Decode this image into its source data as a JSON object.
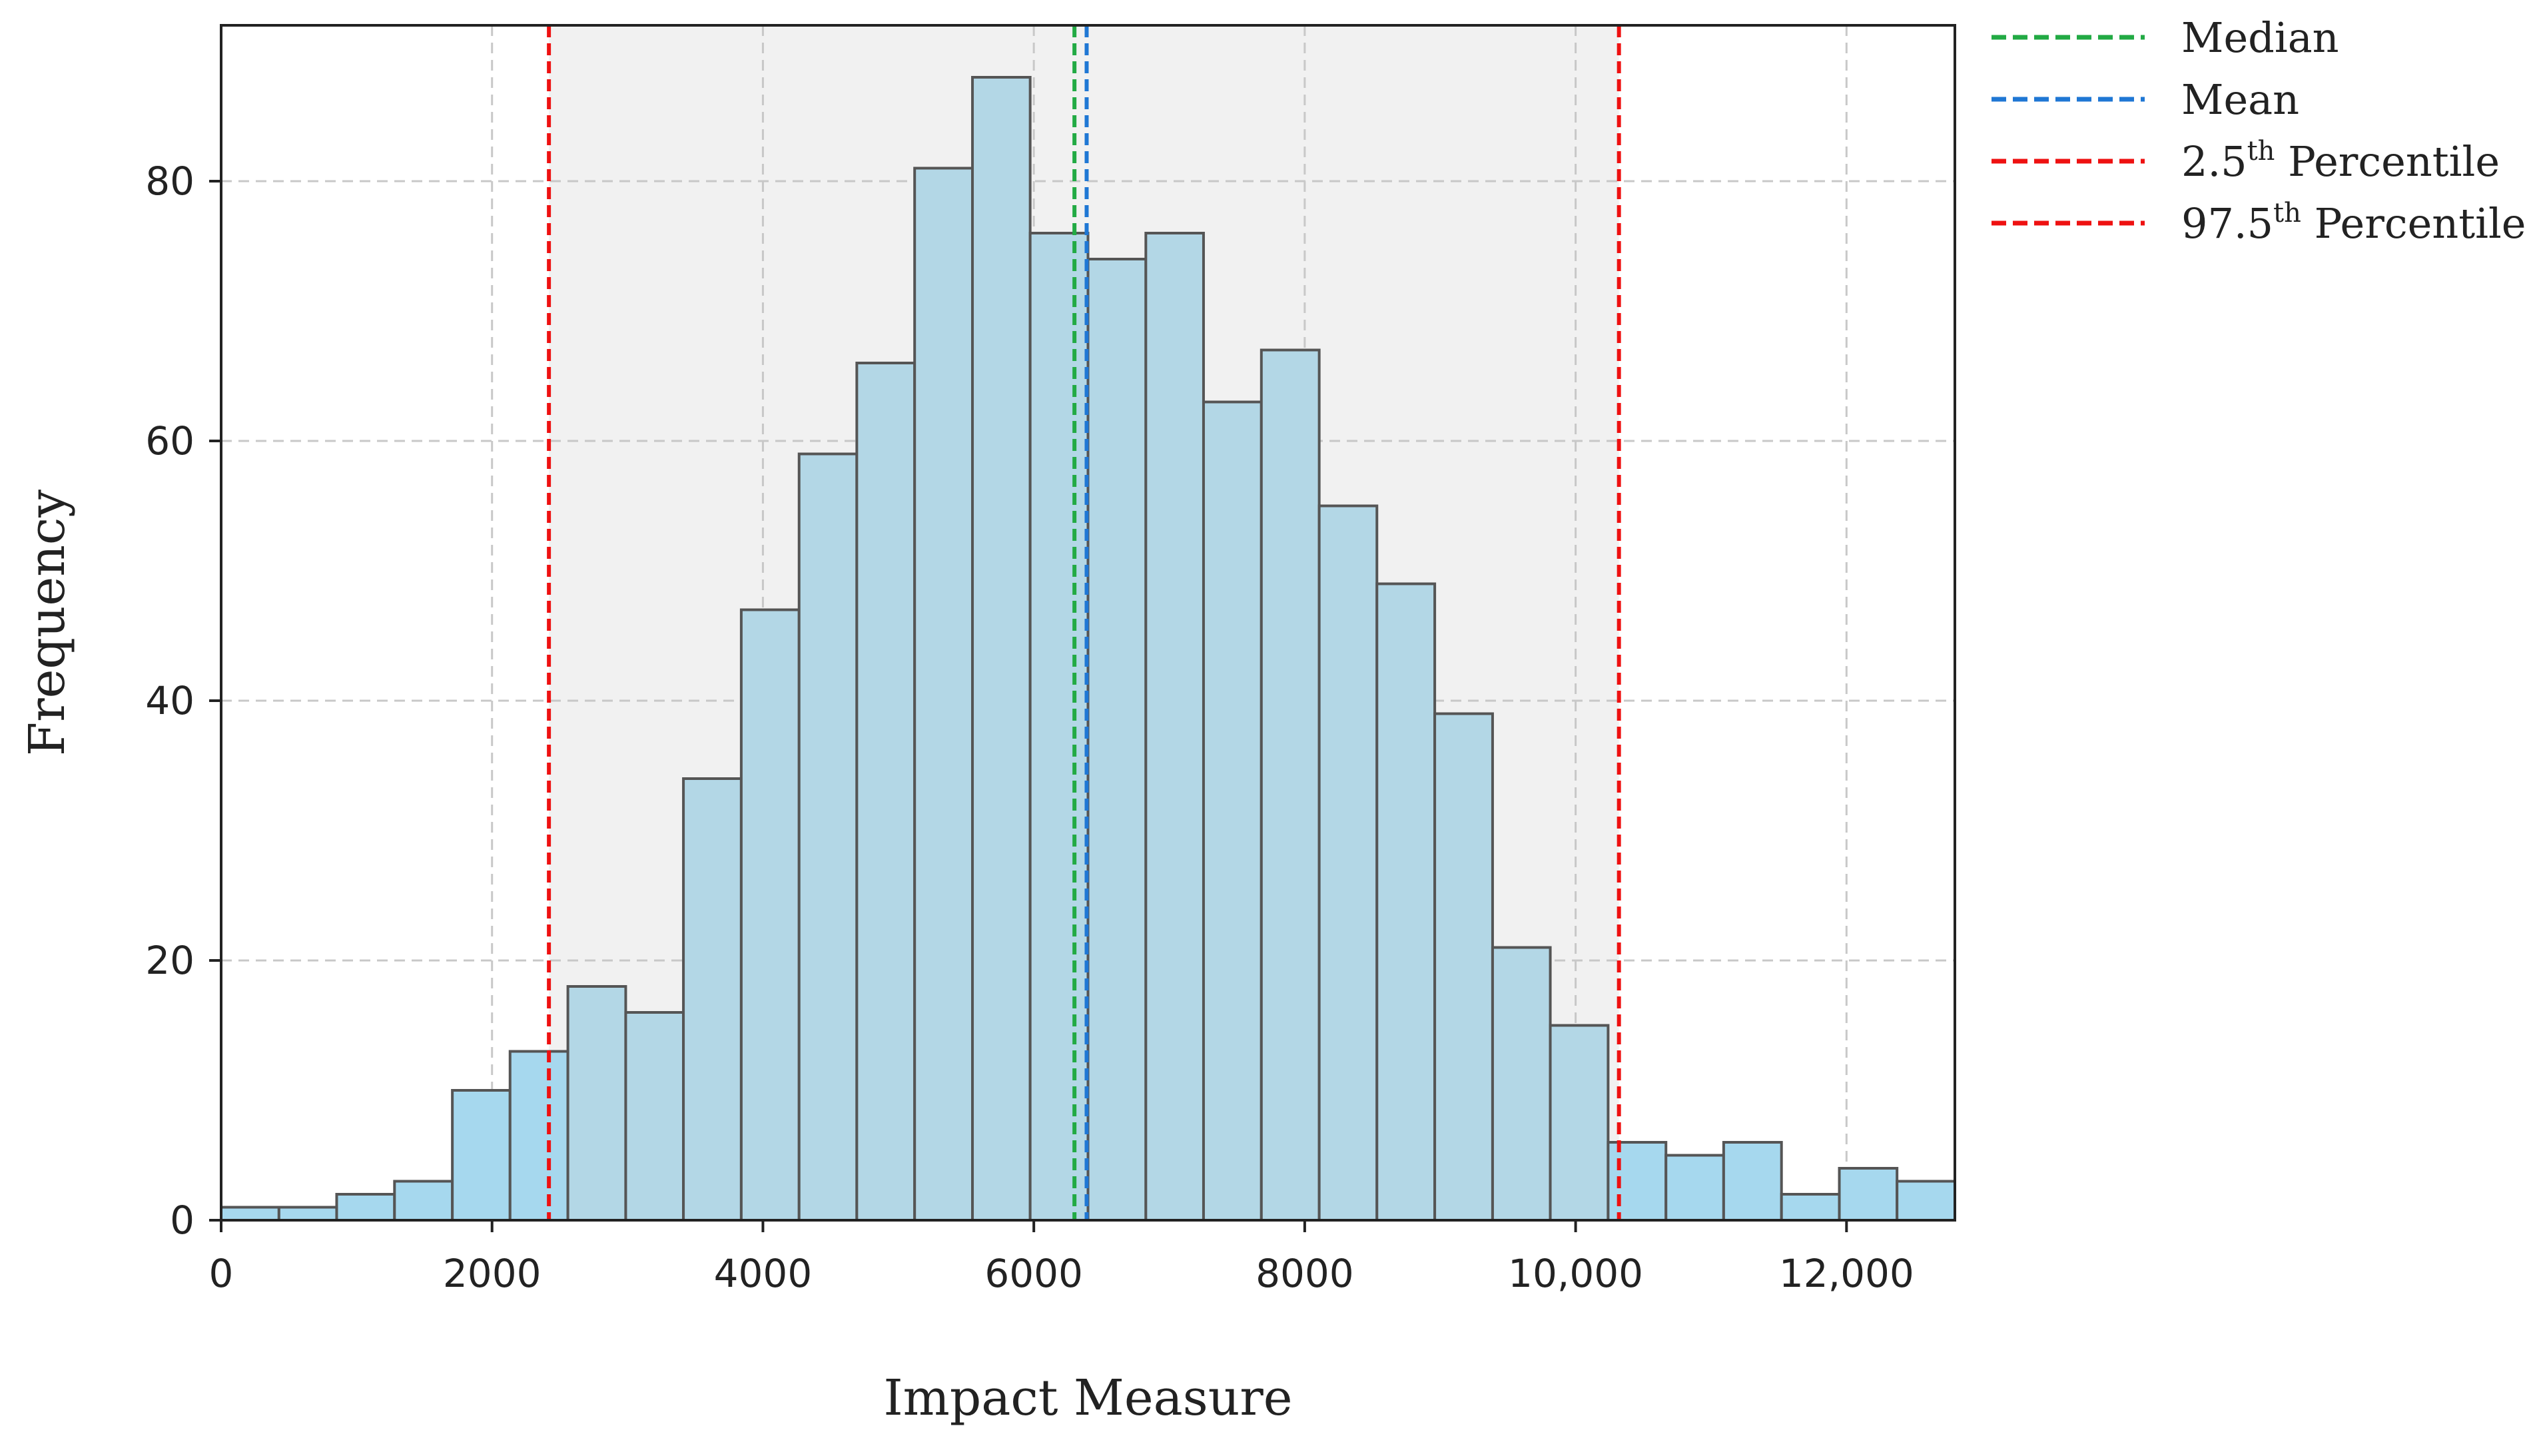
{
  "chart_data": {
    "type": "bar",
    "subtype": "histogram",
    "title": "",
    "xlabel": "Impact Measure",
    "ylabel": "Frequency",
    "xlim": [
      0,
      12800
    ],
    "ylim": [
      0,
      92
    ],
    "x_ticks": [
      0,
      2000,
      4000,
      6000,
      8000,
      10000,
      12000
    ],
    "x_tick_labels": [
      "0",
      "2000",
      "4000",
      "6000",
      "8000",
      "10,000",
      "12,000"
    ],
    "y_ticks": [
      0,
      20,
      40,
      60,
      80
    ],
    "y_tick_labels": [
      "0",
      "20",
      "40",
      "60",
      "80"
    ],
    "grid": true,
    "legend_position": "outside-right-top",
    "bin_edges": [
      0,
      427,
      853,
      1280,
      1707,
      2133,
      2560,
      2987,
      3413,
      3840,
      4267,
      4693,
      5120,
      5547,
      5973,
      6400,
      6827,
      7253,
      7680,
      8107,
      8533,
      8960,
      9387,
      9813,
      10240,
      10667,
      11093,
      11520,
      11947,
      12373,
      12800
    ],
    "counts": [
      1,
      1,
      2,
      3,
      10,
      13,
      18,
      16,
      34,
      47,
      59,
      66,
      81,
      88,
      76,
      74,
      76,
      63,
      67,
      55,
      49,
      39,
      21,
      15,
      6,
      5,
      6,
      2,
      4,
      3
    ],
    "reference_lines": [
      {
        "name": "Median",
        "name_base": "Median",
        "name_sup": "",
        "name_rest": "",
        "x": 6300,
        "color": "#22aa44"
      },
      {
        "name": "Mean",
        "name_base": "Mean",
        "name_sup": "",
        "name_rest": "",
        "x": 6390,
        "color": "#1f77d4"
      },
      {
        "name": "2.5th Percentile",
        "name_base": "2.5",
        "name_sup": "th",
        "name_rest": " Percentile",
        "x": 2420,
        "color": "#ee1111"
      },
      {
        "name": "97.5th Percentile",
        "name_base": "97.5",
        "name_sup": "th",
        "name_rest": " Percentile",
        "x": 10320,
        "color": "#ee1111"
      }
    ],
    "colors": {
      "bar_fill": "#b3d7e6",
      "bar_fill_outside": "#a6d8ee",
      "bar_edge": "#555555",
      "ci_shade": "#f1f1f1",
      "grid": "#c8c8c8"
    }
  }
}
